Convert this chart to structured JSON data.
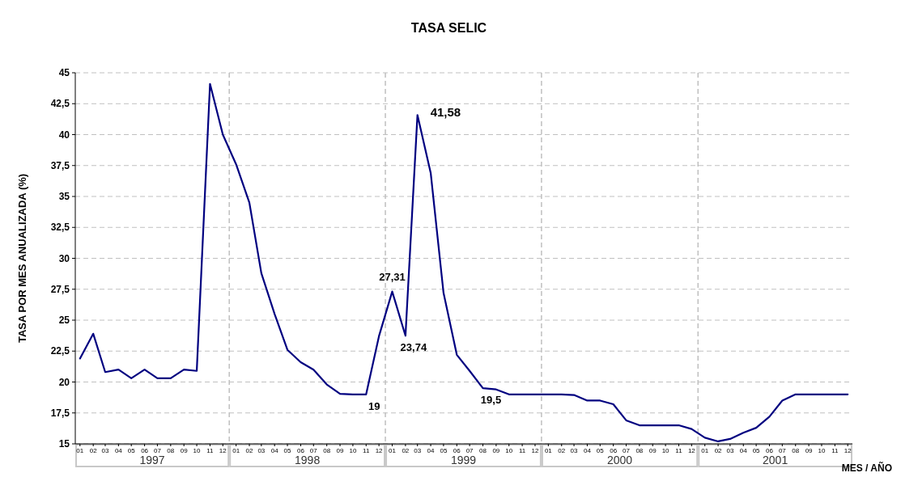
{
  "chart_data": {
    "type": "line",
    "title": "TASA SELIC",
    "xlabel": "MES / AÑO",
    "ylabel": "TASA POR MES ANUALIZADA (%)",
    "x": [
      "1997-01",
      "1997-02",
      "1997-03",
      "1997-04",
      "1997-05",
      "1997-06",
      "1997-07",
      "1997-08",
      "1997-09",
      "1997-10",
      "1997-11",
      "1997-12",
      "1998-01",
      "1998-02",
      "1998-03",
      "1998-04",
      "1998-05",
      "1998-06",
      "1998-07",
      "1998-08",
      "1998-09",
      "1998-10",
      "1998-11",
      "1998-12",
      "1999-01",
      "1999-02",
      "1999-03",
      "1999-04",
      "1999-05",
      "1999-06",
      "1999-07",
      "1999-08",
      "1999-09",
      "1999-10",
      "1999-11",
      "1999-12",
      "2000-01",
      "2000-02",
      "2000-03",
      "2000-04",
      "2000-05",
      "2000-06",
      "2000-07",
      "2000-08",
      "2000-09",
      "2000-10",
      "2000-11",
      "2000-12",
      "2001-01",
      "2001-02",
      "2001-03",
      "2001-04",
      "2001-05",
      "2001-06",
      "2001-07",
      "2001-08",
      "2001-09",
      "2001-10",
      "2001-11",
      "2001-12"
    ],
    "series": [
      {
        "color": "#000080",
        "values": [
          21.9,
          23.9,
          20.8,
          21.0,
          20.3,
          21.0,
          20.3,
          20.3,
          21.0,
          20.9,
          44.1,
          40.0,
          37.6,
          34.5,
          28.8,
          25.5,
          22.6,
          21.6,
          21.0,
          19.8,
          19.05,
          19.0,
          19.0,
          23.7,
          27.31,
          23.74,
          41.58,
          36.9,
          27.2,
          22.2,
          20.9,
          19.5,
          19.4,
          19.0,
          19.0,
          19.0,
          19.0,
          19.0,
          18.95,
          18.5,
          18.5,
          18.2,
          16.9,
          16.5,
          16.5,
          16.5,
          16.5,
          16.2,
          15.5,
          15.2,
          15.4,
          15.9,
          16.3,
          17.2,
          18.5,
          19.0,
          19.0,
          19.0,
          19.0,
          19.0
        ]
      }
    ],
    "xlim": [
      "1996-12-21",
      "2001-12-12"
    ],
    "xticks": [
      {
        "value": "1997-01",
        "label": "01"
      },
      {
        "value": "1997-02",
        "label": "02"
      },
      {
        "value": "1997-03",
        "label": "03"
      },
      {
        "value": "1997-04",
        "label": "04"
      },
      {
        "value": "1997-05",
        "label": "05"
      },
      {
        "value": "1997-06",
        "label": "06"
      },
      {
        "value": "1997-07",
        "label": "07"
      },
      {
        "value": "1997-08",
        "label": "08"
      },
      {
        "value": "1997-09",
        "label": "09"
      },
      {
        "value": "1997-10",
        "label": "10"
      },
      {
        "value": "1997-11",
        "label": "11"
      },
      {
        "value": "1997-12",
        "label": "12"
      },
      {
        "value": "1998-01",
        "label": "01"
      },
      {
        "value": "1998-02",
        "label": "02"
      },
      {
        "value": "1998-03",
        "label": "03"
      },
      {
        "value": "1998-04",
        "label": "04"
      },
      {
        "value": "1998-05",
        "label": "05"
      },
      {
        "value": "1998-06",
        "label": "06"
      },
      {
        "value": "1998-07",
        "label": "07"
      },
      {
        "value": "1998-08",
        "label": "08"
      },
      {
        "value": "1998-09",
        "label": "09"
      },
      {
        "value": "1998-10",
        "label": "10"
      },
      {
        "value": "1998-11",
        "label": "11"
      },
      {
        "value": "1998-12",
        "label": "12"
      },
      {
        "value": "1999-01",
        "label": "01"
      },
      {
        "value": "1999-02",
        "label": "02"
      },
      {
        "value": "1999-03",
        "label": "03"
      },
      {
        "value": "1999-04",
        "label": "04"
      },
      {
        "value": "1999-05",
        "label": "05"
      },
      {
        "value": "1999-06",
        "label": "06"
      },
      {
        "value": "1999-07",
        "label": "07"
      },
      {
        "value": "1999-08",
        "label": "08"
      },
      {
        "value": "1999-09",
        "label": "09"
      },
      {
        "value": "1999-10",
        "label": "10"
      },
      {
        "value": "1999-11",
        "label": "11"
      },
      {
        "value": "1999-12",
        "label": "12"
      },
      {
        "value": "2000-01",
        "label": "01"
      },
      {
        "value": "2000-02",
        "label": "02"
      },
      {
        "value": "2000-03",
        "label": "03"
      },
      {
        "value": "2000-04",
        "label": "04"
      },
      {
        "value": "2000-05",
        "label": "05"
      },
      {
        "value": "2000-06",
        "label": "06"
      },
      {
        "value": "2000-07",
        "label": "07"
      },
      {
        "value": "2000-08",
        "label": "08"
      },
      {
        "value": "2000-09",
        "label": "09"
      },
      {
        "value": "2000-10",
        "label": "10"
      },
      {
        "value": "2000-11",
        "label": "11"
      },
      {
        "value": "2000-12",
        "label": "12"
      },
      {
        "value": "2001-01",
        "label": "01"
      },
      {
        "value": "2001-02",
        "label": "02"
      },
      {
        "value": "2001-03",
        "label": "03"
      },
      {
        "value": "2001-04",
        "label": "04"
      },
      {
        "value": "2001-05",
        "label": "05"
      },
      {
        "value": "2001-06",
        "label": "06"
      },
      {
        "value": "2001-07",
        "label": "07"
      },
      {
        "value": "2001-08",
        "label": "08"
      },
      {
        "value": "2001-09",
        "label": "09"
      },
      {
        "value": "2001-10",
        "label": "10"
      },
      {
        "value": "2001-11",
        "label": "11"
      },
      {
        "value": "2001-12",
        "label": "12"
      }
    ],
    "ylim": [
      15,
      45
    ],
    "yticks": [
      15,
      {
        "value": 17.5,
        "label": "17,5"
      },
      20,
      {
        "value": 22.5,
        "label": "22,5"
      },
      25,
      {
        "value": 27.5,
        "label": "27,5"
      },
      30,
      {
        "value": 32.5,
        "label": "32,5"
      },
      35,
      {
        "value": 37.5,
        "label": "37,5"
      },
      40,
      {
        "value": 42.5,
        "label": "42,5"
      },
      45
    ],
    "grid": "y",
    "line_style": "solid",
    "marker": "none",
    "ref_lines": [
      {
        "axis": "x",
        "value": "1997-12-16",
        "color": "#c0c0c0",
        "line_style": "dashed"
      },
      {
        "axis": "x",
        "value": "1998-12-16",
        "color": "#c0c0c0",
        "line_style": "dashed"
      },
      {
        "axis": "x",
        "value": "1999-12-16",
        "color": "#c0c0c0",
        "line_style": "dashed"
      },
      {
        "axis": "x",
        "value": "2000-12-16",
        "color": "#c0c0c0",
        "line_style": "dashed"
      }
    ],
    "annotations": [
      {
        "text": "41,58",
        "x": "1999-03",
        "y": 41.58
      },
      {
        "text": "27,31",
        "x": "1999-01",
        "y": 27.31
      },
      {
        "text": "23,74",
        "x": "1999-02",
        "y": 23.74
      },
      {
        "text": "19",
        "x": "1998-11",
        "y": 19.0
      },
      {
        "text": "19,5",
        "x": "1999-08",
        "y": 19.5
      },
      "1997",
      "1998",
      "1999",
      "2000",
      "2001"
    ]
  }
}
